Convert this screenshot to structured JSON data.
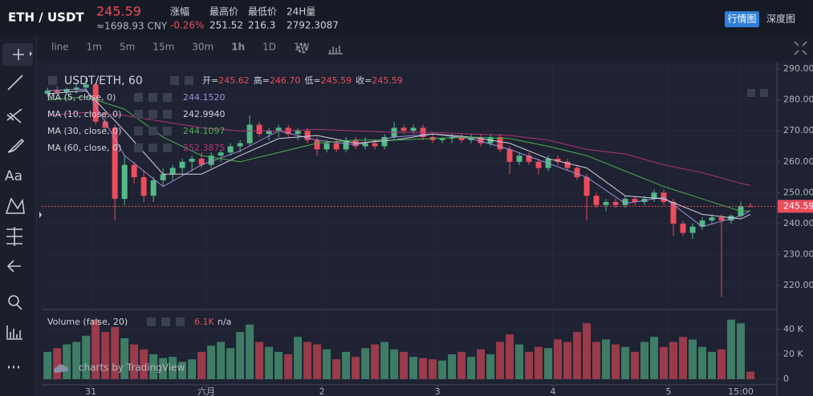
{
  "header": {
    "pair": "ETH / USDT",
    "price": "245.59",
    "cny": "≈1698.93 CNY",
    "stats": [
      {
        "label": "涨幅",
        "value": "-0.26%"
      },
      {
        "label": "最高价",
        "value": "251.52"
      },
      {
        "label": "最低价",
        "value": "216.3"
      },
      {
        "label": "24H量",
        "value": "2792.3087"
      }
    ],
    "tabs": [
      "行情图",
      "深度图"
    ]
  },
  "toolbar": {
    "intervals": [
      "line",
      "1m",
      "5m",
      "15m",
      "30m",
      "1h",
      "1D",
      "1W"
    ],
    "active": "1h"
  },
  "sidebar": {
    "text_tool": "Aa"
  },
  "watermark": "charts by TradingView",
  "chart_data": [
    {
      "type": "candlestick",
      "title": "USDT/ETH, 60",
      "ohlc_legend": [
        {
          "label": "开=",
          "value": "245.62"
        },
        {
          "label": "高=",
          "value": "246.70"
        },
        {
          "label": "低=",
          "value": "245.59"
        },
        {
          "label": "收=",
          "value": "245.59"
        }
      ],
      "x": [
        -9,
        -7,
        -5,
        -3,
        -1,
        1,
        3,
        5,
        7,
        9,
        11,
        13,
        15,
        17,
        19,
        21,
        23,
        25,
        27,
        29,
        31,
        33,
        35,
        37,
        39,
        41,
        43,
        45,
        47,
        49,
        51,
        53,
        55,
        57,
        59,
        61,
        63,
        65,
        67,
        69,
        71,
        73,
        75,
        77,
        79,
        81,
        83,
        85,
        87,
        89,
        91,
        93,
        95,
        97,
        99,
        101,
        103,
        105,
        107,
        109,
        111,
        113,
        115,
        117,
        119,
        121,
        123,
        125,
        127,
        129,
        131,
        133,
        135,
        137
      ],
      "open": [
        282,
        283,
        282.5,
        283.5,
        284,
        285,
        273,
        271,
        248,
        259,
        255,
        249,
        254,
        256,
        258,
        260,
        261,
        259,
        262,
        263,
        265,
        266,
        272,
        269,
        270,
        271,
        269,
        270,
        267,
        264,
        266,
        264,
        267,
        265,
        266,
        265,
        268,
        271,
        270,
        271,
        268,
        267,
        267.5,
        268,
        267,
        268,
        266,
        268,
        264,
        260,
        262,
        260,
        258,
        261,
        260,
        258,
        255,
        249,
        246,
        247,
        246,
        248,
        247,
        248,
        250,
        247,
        240,
        237,
        239,
        241,
        242,
        241,
        242.5,
        245.62
      ],
      "high": [
        284,
        284.5,
        284,
        285,
        287.5,
        285.5,
        276,
        272,
        262,
        260,
        257,
        255,
        258,
        259,
        261,
        262,
        263,
        263,
        264,
        266,
        267,
        275,
        273,
        271,
        272,
        272,
        271,
        271,
        268,
        267,
        267,
        268,
        268,
        268,
        267,
        269,
        273,
        272,
        272,
        272,
        269,
        268,
        269,
        269,
        269,
        269,
        269,
        269,
        265,
        263,
        263,
        261,
        262,
        262,
        261,
        259,
        256,
        250,
        248,
        248,
        249,
        249,
        249,
        251,
        251,
        248,
        241,
        240,
        242,
        243,
        243,
        243,
        247,
        246.7
      ],
      "low": [
        281,
        282,
        281.5,
        282,
        283,
        272,
        270,
        241,
        246,
        253,
        247,
        247,
        252,
        254,
        256,
        257,
        258,
        258,
        260,
        262,
        263,
        265,
        268,
        267,
        268,
        268,
        267,
        266,
        262,
        263,
        263,
        263,
        264,
        264,
        264,
        264,
        267,
        269,
        269,
        267,
        266,
        266,
        266,
        266,
        266,
        265,
        265,
        263,
        256,
        259,
        259,
        256,
        257,
        259,
        257,
        254,
        241,
        245,
        244,
        245,
        245,
        246,
        246,
        247,
        246,
        236,
        236,
        235,
        238,
        240,
        216.3,
        240,
        242,
        245.59
      ],
      "close": [
        283,
        282.5,
        283.5,
        284,
        285,
        273,
        271,
        248,
        259,
        255,
        249,
        254,
        256,
        258,
        260,
        261,
        259,
        262,
        263,
        265,
        266,
        272,
        269,
        270,
        271,
        269,
        270,
        267,
        264,
        266,
        264,
        267,
        265,
        266,
        265,
        268,
        271,
        270,
        271,
        268,
        267,
        267.5,
        268,
        267,
        268,
        266,
        268,
        264,
        260,
        262,
        260,
        258,
        261,
        260,
        258,
        255,
        249,
        246,
        247,
        246,
        248,
        247,
        248,
        250,
        247,
        240,
        237,
        239,
        241,
        242,
        241,
        242.5,
        245.6,
        245.59
      ],
      "up_color": "#53b987",
      "down_color": "#eb4d5c",
      "series": [
        {
          "name": "MA (5, close, 0)",
          "legend_value": "244.1520",
          "color": "#a08fd8",
          "x": [
            -9,
            -1,
            7,
            15,
            23,
            31,
            39,
            47,
            55,
            63,
            71,
            79,
            87,
            95,
            103,
            111,
            119,
            127,
            135,
            137
          ],
          "values": [
            283,
            283.5,
            262,
            252,
            259,
            263.5,
            270,
            267,
            265.5,
            268,
            269,
            267.5,
            264,
            259.5,
            255,
            246.5,
            248.5,
            239,
            242.5,
            244.152
          ]
        },
        {
          "name": "MA (10, close, 0)",
          "legend_value": "242.9940",
          "color": "#d1d4dc",
          "x": [
            -9,
            -1,
            7,
            15,
            23,
            31,
            39,
            47,
            55,
            63,
            71,
            79,
            87,
            95,
            103,
            111,
            119,
            127,
            135,
            137
          ],
          "values": [
            282,
            283,
            270,
            256,
            256,
            262,
            267.5,
            268.5,
            266,
            267,
            269,
            268,
            266,
            261,
            258,
            249,
            248,
            243,
            241.5,
            242.994
          ]
        },
        {
          "name": "MA (30, close, 0)",
          "legend_value": "244.1097",
          "color": "#4caf50",
          "x": [
            -9,
            -1,
            7,
            15,
            23,
            31,
            39,
            47,
            55,
            63,
            71,
            79,
            87,
            95,
            103,
            111,
            119,
            127,
            135,
            137
          ],
          "values": [
            280,
            281,
            277,
            268,
            262,
            260,
            263,
            266,
            267,
            267,
            267.5,
            268,
            267.5,
            265,
            262,
            257,
            252,
            248,
            244,
            244.1097
          ]
        },
        {
          "name": "MA (60, close, 0)",
          "legend_value": "252.3875",
          "color": "#b2327a",
          "x": [
            -9,
            -1,
            7,
            15,
            23,
            31,
            39,
            47,
            55,
            63,
            71,
            79,
            87,
            95,
            103,
            111,
            119,
            127,
            135,
            137
          ],
          "values": [
            275,
            276,
            275,
            273,
            271,
            270,
            270,
            270.5,
            270,
            269.5,
            269.5,
            269,
            268.5,
            267,
            264,
            262.5,
            259,
            256.5,
            253,
            252.3875
          ]
        }
      ],
      "xlim": [
        -10.2,
        142.5
      ],
      "xticks": [
        {
          "value": 0,
          "label": "31"
        },
        {
          "value": 24,
          "label": "六月"
        },
        {
          "value": 48,
          "label": "2"
        },
        {
          "value": 72,
          "label": "3"
        },
        {
          "value": 96,
          "label": "4"
        },
        {
          "value": 120,
          "label": "5"
        },
        {
          "value": 135,
          "label": "15:00"
        }
      ],
      "ylim": [
        212.5,
        292.1
      ],
      "yticks": [
        {
          "value": 220,
          "label": "220.00"
        },
        {
          "value": 230,
          "label": "230.00"
        },
        {
          "value": 240,
          "label": "240.00"
        },
        {
          "value": 250,
          "label": "250.00"
        },
        {
          "value": 260,
          "label": "260.00"
        },
        {
          "value": 270,
          "label": "270.00"
        },
        {
          "value": 280,
          "label": "280.00"
        },
        {
          "value": 290,
          "label": "290.00"
        }
      ],
      "last_price": {
        "value": 245.59,
        "label": "245.59",
        "color": "#eb4d5c"
      },
      "grid": true
    },
    {
      "type": "bar",
      "title": "Volume (false, 20)",
      "legend_value": "6.1K",
      "legend_extra": "n/a",
      "values": [
        22000,
        25000,
        28000,
        30000,
        35000,
        48000,
        38000,
        42000,
        33000,
        28000,
        24000,
        20000,
        17000,
        18000,
        14000,
        16000,
        22000,
        27000,
        30000,
        25000,
        38000,
        44000,
        30000,
        26000,
        22000,
        20000,
        34000,
        30000,
        28000,
        24000,
        16000,
        22000,
        18000,
        25000,
        28000,
        30000,
        24000,
        22000,
        18000,
        17000,
        16000,
        15000,
        20000,
        22000,
        18000,
        24000,
        20000,
        30000,
        36000,
        28000,
        22000,
        26000,
        25000,
        32000,
        30000,
        38000,
        45000,
        30000,
        32000,
        28000,
        26000,
        22000,
        30000,
        34000,
        26000,
        30000,
        34000,
        32000,
        26000,
        22000,
        24000,
        48000,
        45000,
        6100
      ],
      "ylim": [
        -4500,
        55500
      ],
      "yticks": [
        {
          "value": 0,
          "label": "0"
        },
        {
          "value": 20000,
          "label": "20 K"
        },
        {
          "value": 40000,
          "label": "40 K"
        }
      ],
      "grid": true
    }
  ]
}
